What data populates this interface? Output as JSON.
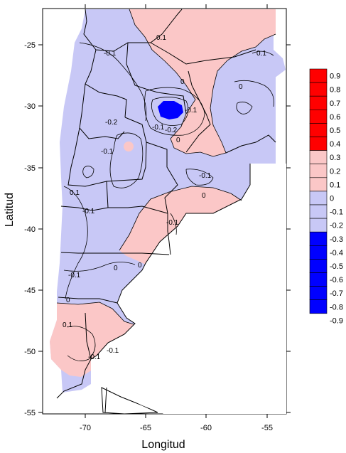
{
  "axes": {
    "xlabel": "Longitud",
    "ylabel": "Latitud",
    "xticks": [
      "-70",
      "-65",
      "-60",
      "-55"
    ],
    "yticks": [
      "-25",
      "-30",
      "-35",
      "-40",
      "-45",
      "-50",
      "-55"
    ]
  },
  "colorbar": {
    "labels": [
      "0.9",
      "0.8",
      "0.7",
      "0.6",
      "0.5",
      "0.4",
      "0.3",
      "0.2",
      "0.1",
      "0",
      "-0.1",
      "-0.2",
      "-0.3",
      "-0.4",
      "-0.5",
      "-0.6",
      "-0.7",
      "-0.8",
      "-0.9"
    ],
    "colors": {
      "strong_positive": "#ff0000",
      "weak_positive": "#fbc7c7",
      "weak_negative": "#c8c8f6",
      "strong_negative": "#0000ff"
    }
  },
  "contour_labels": [
    "0.1",
    "-0.1",
    "0.1",
    "0",
    "-0.1",
    "0",
    "-0.1",
    "-0.2",
    "0",
    "-0.1",
    "0.1",
    "-0.1",
    "0",
    "-0.1",
    "-0.1",
    "0",
    "-0.1",
    "0.1",
    "0",
    "-0.1",
    "-0.1",
    "-0.2",
    "0"
  ],
  "map": {
    "colors": {
      "frame": "#000000",
      "boundary": "#000000",
      "sea": "#ffffff"
    }
  }
}
